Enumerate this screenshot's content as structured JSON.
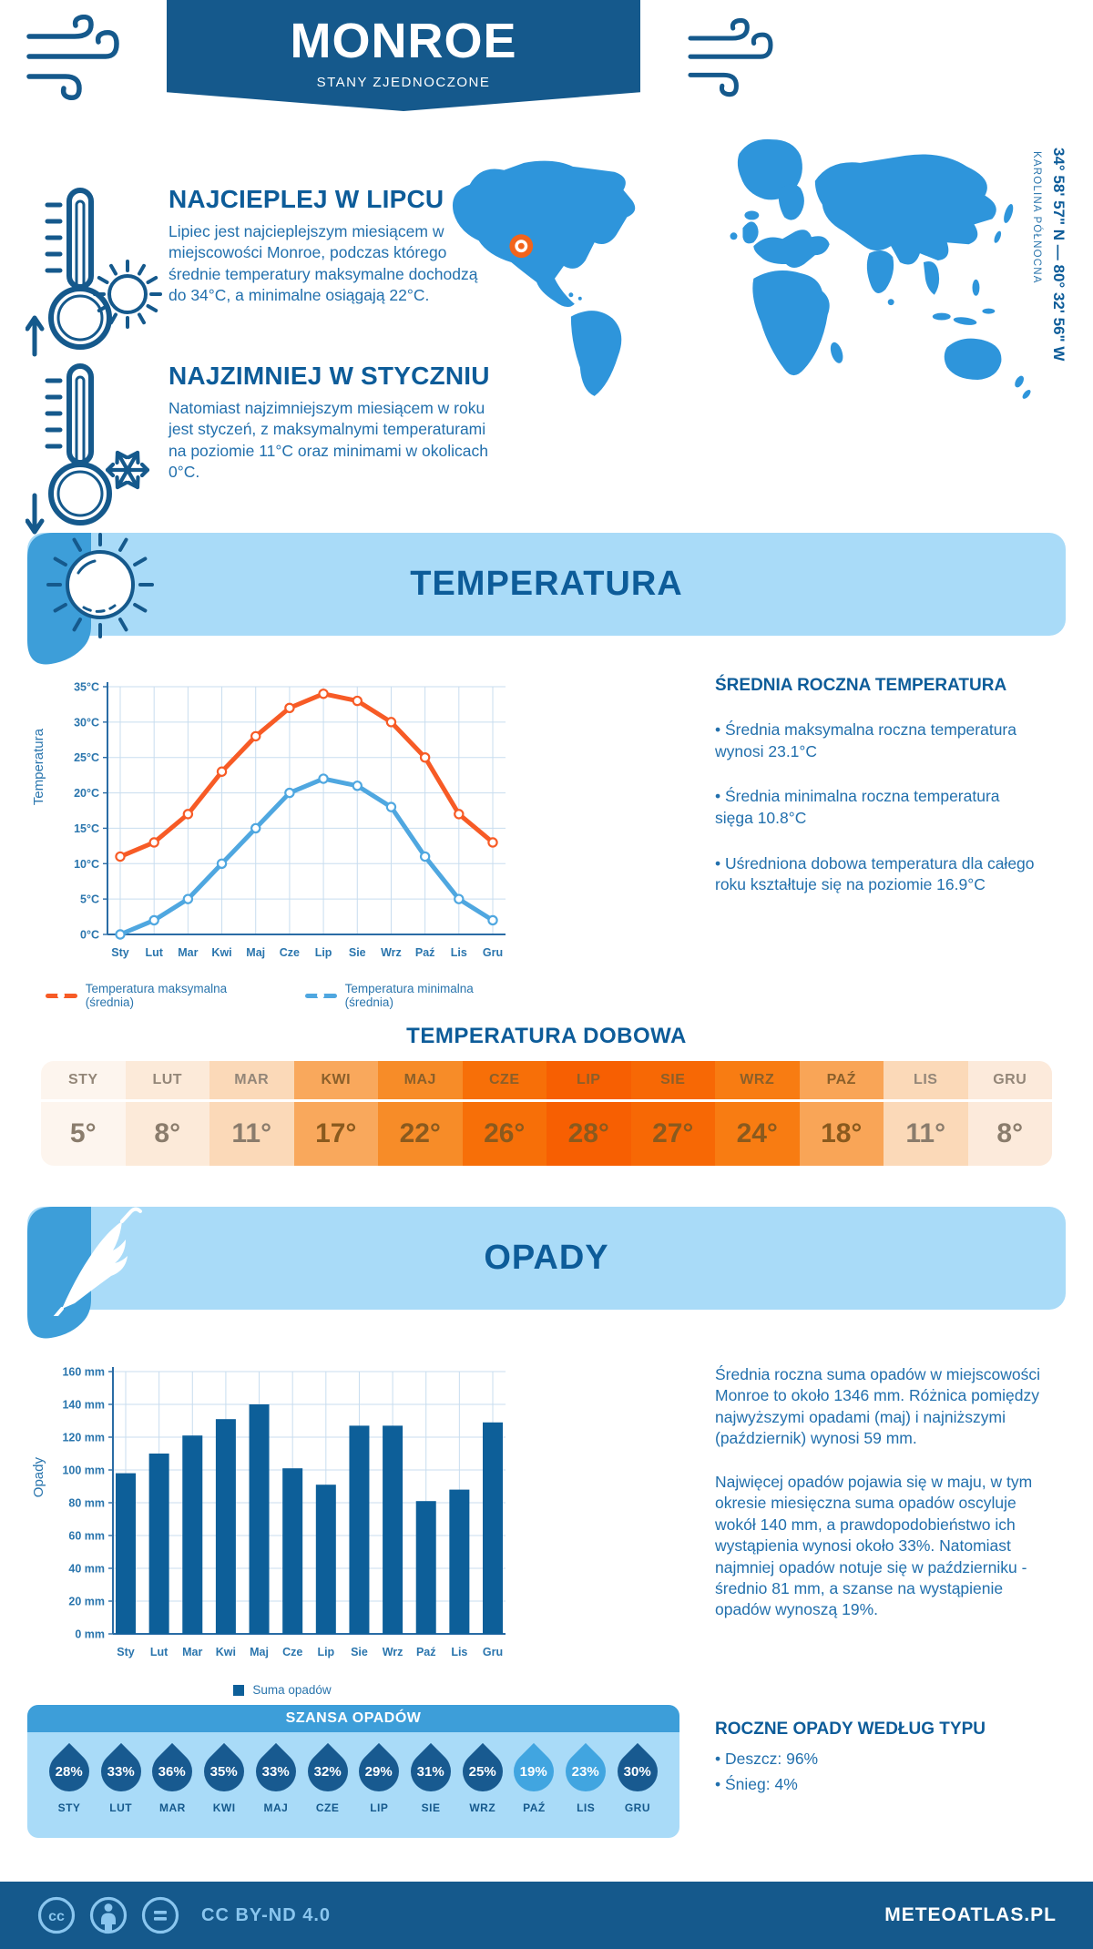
{
  "header": {
    "title": "MONROE",
    "subtitle": "STANY ZJEDNOCZONE"
  },
  "location": {
    "coordinates": "34° 58' 57\" N — 80° 32' 56\" W",
    "region": "KAROLINA PÓŁNOCNA"
  },
  "highlights": {
    "warm": {
      "title": "NAJCIEPLEJ W LIPCU",
      "text": "Lipiec jest najcieplejszym miesiącem w miejscowości Monroe, podczas którego średnie temperatury maksymalne dochodzą do 34°C, a minimalne osiągają 22°C."
    },
    "cold": {
      "title": "NAJZIMNIEJ W STYCZNIU",
      "text": "Natomiast najzimniejszym miesiącem w roku jest styczeń, z maksymalnymi temperaturami na poziomie 11°C oraz minimami w okolicach 0°C."
    }
  },
  "temperature": {
    "banner": "TEMPERATURA",
    "annual_heading": "ŚREDNIA ROCZNA TEMPERATURA",
    "bullets": [
      "• Średnia maksymalna roczna temperatura wynosi 23.1°C",
      "• Średnia minimalna roczna temperatura sięga 10.8°C",
      "• Uśredniona dobowa temperatura dla całego roku kształtuje się na poziomie 16.9°C"
    ],
    "daily_title": "TEMPERATURA DOBOWA",
    "table": {
      "months": [
        "STY",
        "LUT",
        "MAR",
        "KWI",
        "MAJ",
        "CZE",
        "LIP",
        "SIE",
        "WRZ",
        "PAŹ",
        "LIS",
        "GRU"
      ],
      "values": [
        "5°",
        "8°",
        "11°",
        "17°",
        "22°",
        "26°",
        "28°",
        "27°",
        "24°",
        "18°",
        "11°",
        "8°"
      ],
      "colors": [
        "#fdf5ee",
        "#fcead9",
        "#fbd9b8",
        "#f9a85c",
        "#f78c28",
        "#f76f08",
        "#f75f02",
        "#f76805",
        "#f87c12",
        "#f9a557",
        "#fbd9b8",
        "#fceadb"
      ]
    }
  },
  "precipitation": {
    "banner": "OPADY",
    "para1": "Średnia roczna suma opadów w miejscowości Monroe to około 1346 mm. Różnica pomiędzy najwyższymi opadami (maj) i najniższymi (październik) wynosi 59 mm.",
    "para2": "Najwięcej opadów pojawia się w maju, w tym okresie miesięczna suma opadów oscyluje wokół 140 mm, a prawdopodobieństwo ich wystąpienia wynosi około 33%. Natomiast najmniej opadów notuje się w październiku - średnio 81 mm, a szanse na wystąpienie opadów wynoszą 19%.",
    "type_heading": "ROCZNE OPADY WEDŁUG TYPU",
    "type_bullets": [
      "• Deszcz: 96%",
      "• Śnieg: 4%"
    ],
    "chance": {
      "title": "SZANSA OPADÓW",
      "months": [
        "STY",
        "LUT",
        "MAR",
        "KWI",
        "MAJ",
        "CZE",
        "LIP",
        "SIE",
        "WRZ",
        "PAŹ",
        "LIS",
        "GRU"
      ],
      "values": [
        "28%",
        "33%",
        "36%",
        "35%",
        "33%",
        "32%",
        "29%",
        "31%",
        "25%",
        "19%",
        "23%",
        "30%"
      ],
      "light": [
        false,
        false,
        false,
        false,
        false,
        false,
        false,
        false,
        false,
        true,
        true,
        false
      ],
      "drop_color": "#185a90",
      "drop_color_light": "#41a5e0"
    }
  },
  "chart_data": [
    {
      "type": "line",
      "x": [
        "Sty",
        "Lut",
        "Mar",
        "Kwi",
        "Maj",
        "Cze",
        "Lip",
        "Sie",
        "Wrz",
        "Paź",
        "Lis",
        "Gru"
      ],
      "ylabel": "Temperatura",
      "ylim": [
        0,
        35
      ],
      "ytick_step": 5,
      "ytick_suffix": "°C",
      "grid": true,
      "legend_position": "bottom",
      "series": [
        {
          "name": "Temperatura maksymalna (średnia)",
          "color": "#f75b26",
          "values": [
            11,
            13,
            17,
            23,
            28,
            32,
            34,
            33,
            30,
            25,
            17,
            13
          ]
        },
        {
          "name": "Temperatura minimalna (średnia)",
          "color": "#4fa7e0",
          "values": [
            0,
            2,
            5,
            10,
            15,
            20,
            22,
            21,
            18,
            11,
            5,
            2
          ]
        }
      ]
    },
    {
      "type": "bar",
      "x": [
        "Sty",
        "Lut",
        "Mar",
        "Kwi",
        "Maj",
        "Cze",
        "Lip",
        "Sie",
        "Wrz",
        "Paź",
        "Lis",
        "Gru"
      ],
      "ylabel": "Opady",
      "ylim": [
        0,
        160
      ],
      "ytick_step": 20,
      "ytick_suffix": " mm",
      "grid": true,
      "legend_position": "bottom",
      "series": [
        {
          "name": "Suma opadów",
          "color": "#0d5f99",
          "values": [
            98,
            110,
            121,
            131,
            140,
            101,
            91,
            127,
            127,
            81,
            88,
            129
          ]
        }
      ]
    }
  ],
  "footer": {
    "license": "CC BY-ND 4.0",
    "brand": "METEOATLAS.PL"
  },
  "colors": {
    "primary": "#15598c",
    "heading": "#0d5c99",
    "body_text": "#2270ad",
    "banner_bg": "#a9dbf8",
    "banner_corner": "#3d9ed9",
    "map_fill": "#2e95db",
    "marker": "#f2641c",
    "max_line": "#f75b26",
    "min_line": "#4fa7e0",
    "bar": "#0d5f99"
  },
  "icons": [
    "wind-icon",
    "thermometer-up-icon",
    "sun-icon",
    "thermometer-down-icon",
    "snowflake-icon",
    "umbrella-icon",
    "water-drop-icon",
    "location-marker-icon",
    "cc-icon",
    "cc-attribution-icon",
    "cc-nd-icon"
  ]
}
